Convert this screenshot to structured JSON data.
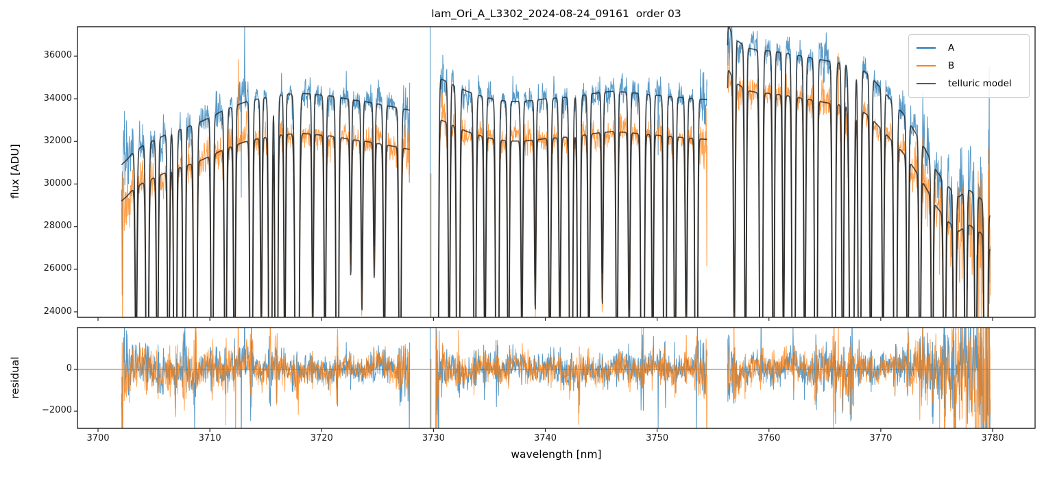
{
  "chart_data": {
    "type": "line",
    "title": "lam_Ori_A_L3302_2024-08-24_09161  order 03",
    "xlabel": "wavelength [nm]",
    "xlim": [
      3698.16,
      3783.8
    ],
    "xticks": [
      3700,
      3710,
      3720,
      3730,
      3740,
      3750,
      3760,
      3770,
      3780
    ],
    "grid": false,
    "legend_position": "upper right",
    "panels": [
      {
        "name": "flux",
        "ylabel": "flux [ADU]",
        "ylim": [
          23743,
          37383
        ],
        "yticks": [
          24000,
          26000,
          28000,
          30000,
          32000,
          34000,
          36000
        ]
      },
      {
        "name": "residual",
        "ylabel": "residual",
        "ylim": [
          -2820,
          2000
        ],
        "yticks": [
          -2000,
          0
        ],
        "zero_line": true
      }
    ],
    "legend": [
      {
        "label": "A",
        "color": "#1f77b4"
      },
      {
        "label": "B",
        "color": "#ff7f0e"
      },
      {
        "label": "telluric model",
        "color": "#595959"
      }
    ],
    "series_style": {
      "A": {
        "color": "#1f77b4",
        "alpha": 0.75,
        "lw": 1
      },
      "B": {
        "color": "#ff7f0e",
        "alpha": 0.75,
        "lw": 1
      },
      "model": {
        "color": "#333333",
        "alpha": 0.82,
        "lw": 1.7
      }
    },
    "segments": [
      {
        "range": [
          3702.1,
          3727.9
        ]
      },
      {
        "range": [
          3730.2,
          3754.5
        ]
      },
      {
        "range": [
          3756.3,
          3779.8
        ]
      }
    ],
    "flux_B_to_A_ratio": 0.945,
    "continuum_A": [
      [
        3702.1,
        30900
      ],
      [
        3702.6,
        31150
      ],
      [
        3703,
        31400
      ],
      [
        3704,
        31800
      ],
      [
        3705,
        32050
      ],
      [
        3706,
        32300
      ],
      [
        3707,
        32500
      ],
      [
        3708,
        32680
      ],
      [
        3709,
        32880
      ],
      [
        3710,
        33120
      ],
      [
        3711,
        33400
      ],
      [
        3712,
        33620
      ],
      [
        3713,
        33820
      ],
      [
        3714,
        33960
      ],
      [
        3715,
        34060
      ],
      [
        3716,
        34160
      ],
      [
        3717,
        34220
      ],
      [
        3718,
        34260
      ],
      [
        3719,
        34230
      ],
      [
        3720,
        34170
      ],
      [
        3721,
        34120
      ],
      [
        3722,
        34020
      ],
      [
        3723,
        33930
      ],
      [
        3724,
        33860
      ],
      [
        3725,
        33760
      ],
      [
        3726,
        33660
      ],
      [
        3727,
        33560
      ],
      [
        3727.9,
        33460
      ],
      [
        3730.2,
        35050
      ],
      [
        3731,
        34850
      ],
      [
        3732,
        34600
      ],
      [
        3733,
        34350
      ],
      [
        3734,
        34180
      ],
      [
        3735,
        34030
      ],
      [
        3736,
        33930
      ],
      [
        3737,
        33880
      ],
      [
        3738,
        33880
      ],
      [
        3739,
        33930
      ],
      [
        3740,
        34000
      ],
      [
        3741,
        34040
      ],
      [
        3742,
        34080
      ],
      [
        3743,
        34130
      ],
      [
        3744,
        34230
      ],
      [
        3745,
        34300
      ],
      [
        3746,
        34350
      ],
      [
        3747,
        34320
      ],
      [
        3748,
        34270
      ],
      [
        3749,
        34220
      ],
      [
        3750,
        34170
      ],
      [
        3751,
        34120
      ],
      [
        3752,
        34070
      ],
      [
        3753,
        34020
      ],
      [
        3754.5,
        33960
      ],
      [
        3756.3,
        37500
      ],
      [
        3757,
        36800
      ],
      [
        3758,
        36400
      ],
      [
        3759,
        36280
      ],
      [
        3760,
        36250
      ],
      [
        3761,
        36180
      ],
      [
        3762,
        36100
      ],
      [
        3763,
        36000
      ],
      [
        3764,
        35900
      ],
      [
        3765,
        35800
      ],
      [
        3766,
        35700
      ],
      [
        3767.5,
        35600
      ],
      [
        3768.5,
        35300
      ],
      [
        3769,
        35100
      ],
      [
        3770,
        34500
      ],
      [
        3771,
        33900
      ],
      [
        3772,
        33300
      ],
      [
        3773,
        32500
      ],
      [
        3774,
        31600
      ],
      [
        3775,
        30600
      ],
      [
        3776,
        29900
      ],
      [
        3777,
        29400
      ],
      [
        3777.8,
        29750
      ],
      [
        3778.5,
        29500
      ],
      [
        3779.2,
        29200
      ],
      [
        3779.8,
        28500
      ]
    ],
    "telluric_lines": [
      [
        3703.4,
        0.3,
        0.08
      ],
      [
        3704.4,
        0.55,
        0.1
      ],
      [
        3705.3,
        0.35,
        0.08
      ],
      [
        3706.3,
        0.45,
        0.08
      ],
      [
        3706.9,
        0.97,
        0.09
      ],
      [
        3707.7,
        0.9,
        0.08
      ],
      [
        3708.7,
        0.97,
        0.1
      ],
      [
        3710.2,
        0.5,
        0.09
      ],
      [
        3711.4,
        0.45,
        0.09
      ],
      [
        3712.2,
        0.4,
        0.08
      ],
      [
        3713.7,
        0.85,
        0.09
      ],
      [
        3714.6,
        0.3,
        0.07
      ],
      [
        3715.4,
        0.97,
        0.1
      ],
      [
        3715.95,
        0.9,
        0.09
      ],
      [
        3716.7,
        0.35,
        0.07
      ],
      [
        3717.8,
        0.97,
        0.13
      ],
      [
        3719.2,
        0.3,
        0.07
      ],
      [
        3720.3,
        0.35,
        0.08
      ],
      [
        3721.4,
        0.8,
        0.09
      ],
      [
        3722.6,
        0.2,
        0.07
      ],
      [
        3723.6,
        0.25,
        0.07
      ],
      [
        3724.7,
        0.2,
        0.07
      ],
      [
        3725.6,
        0.35,
        0.08
      ],
      [
        3727.0,
        0.5,
        0.09
      ],
      [
        3730.3,
        0.95,
        0.1
      ],
      [
        3731.4,
        0.35,
        0.08
      ],
      [
        3732.2,
        0.97,
        0.1
      ],
      [
        3733.7,
        0.5,
        0.09
      ],
      [
        3734.6,
        0.35,
        0.08
      ],
      [
        3735.7,
        0.95,
        0.1
      ],
      [
        3736.7,
        0.4,
        0.08
      ],
      [
        3737.9,
        0.3,
        0.08
      ],
      [
        3739.1,
        0.25,
        0.07
      ],
      [
        3740.4,
        0.35,
        0.09
      ],
      [
        3741.3,
        0.3,
        0.08
      ],
      [
        3742.3,
        0.97,
        0.1
      ],
      [
        3743.0,
        0.9,
        0.09
      ],
      [
        3743.9,
        0.35,
        0.08
      ],
      [
        3745.1,
        0.25,
        0.07
      ],
      [
        3746.4,
        0.4,
        0.08
      ],
      [
        3747.5,
        0.3,
        0.08
      ],
      [
        3748.7,
        0.97,
        0.11
      ],
      [
        3749.6,
        0.35,
        0.08
      ],
      [
        3750.7,
        0.9,
        0.09
      ],
      [
        3751.6,
        0.4,
        0.08
      ],
      [
        3752.6,
        0.3,
        0.08
      ],
      [
        3753.5,
        0.85,
        0.09
      ],
      [
        3756.1,
        0.6,
        0.08
      ],
      [
        3756.9,
        0.35,
        0.08
      ],
      [
        3757.9,
        0.4,
        0.08
      ],
      [
        3759.3,
        0.95,
        0.1
      ],
      [
        3760.4,
        0.45,
        0.08
      ],
      [
        3761.3,
        0.35,
        0.08
      ],
      [
        3762.2,
        0.97,
        0.1
      ],
      [
        3763.2,
        0.4,
        0.08
      ],
      [
        3764.2,
        0.9,
        0.09
      ],
      [
        3765.8,
        0.97,
        0.1
      ],
      [
        3766.6,
        0.45,
        0.08
      ],
      [
        3767.4,
        0.97,
        0.14
      ],
      [
        3768.1,
        0.85,
        0.09
      ],
      [
        3769.1,
        0.4,
        0.08
      ],
      [
        3770.2,
        0.35,
        0.08
      ],
      [
        3771.3,
        0.9,
        0.1
      ],
      [
        3772.4,
        0.4,
        0.08
      ],
      [
        3773.5,
        0.35,
        0.08
      ],
      [
        3774.6,
        0.4,
        0.08
      ],
      [
        3775.7,
        0.45,
        0.09
      ],
      [
        3776.6,
        0.5,
        0.09
      ],
      [
        3777.6,
        0.4,
        0.08
      ],
      [
        3778.5,
        0.35,
        0.08
      ],
      [
        3779.4,
        0.95,
        0.1
      ]
    ],
    "noise": {
      "sigma": 330,
      "line_core_boost": 2.4,
      "segment_edge_boost": 1.6,
      "seg1_blue_region_boost": 1.35,
      "red_end_boost_per_nm": 0.5,
      "seed": 42
    },
    "noise_spikes": [
      {
        "x": 3702.15,
        "series": "A",
        "amp": -5500
      },
      {
        "x": 3702.2,
        "series": "B",
        "amp": -5000
      },
      {
        "x": 3712.3,
        "series": "B",
        "amp": -4500
      },
      {
        "x": 3712.55,
        "series": "B",
        "amp": 3300
      },
      {
        "x": 3712.8,
        "series": "A",
        "amp": -4800
      },
      {
        "x": 3713.1,
        "series": "A",
        "amp": 3600
      },
      {
        "x": 3727.85,
        "series": "A",
        "amp": -4200
      },
      {
        "x": 3750.1,
        "series": "A",
        "amp": -3200
      },
      {
        "x": 3754.45,
        "series": "B",
        "amp": -5000
      },
      {
        "x": 3756.35,
        "series": "A",
        "amp": 2500
      },
      {
        "x": 3765.9,
        "series": "B",
        "amp": -3600
      },
      {
        "x": 3766.2,
        "series": "B",
        "amp": 2800
      },
      {
        "x": 3779.75,
        "series": "A",
        "amp": -5200
      },
      {
        "x": 3779.8,
        "series": "B",
        "amp": -5500
      }
    ],
    "gap_spikes": [
      {
        "x": 3729.7,
        "series": "A",
        "flux_from": 23743,
        "flux_to": 37383,
        "res_from": -2820,
        "res_to": 2000
      },
      {
        "x": 3729.78,
        "series": "B",
        "flux_from": 23743,
        "flux_to": 30500,
        "res_from": -2820,
        "res_to": 500
      }
    ]
  }
}
